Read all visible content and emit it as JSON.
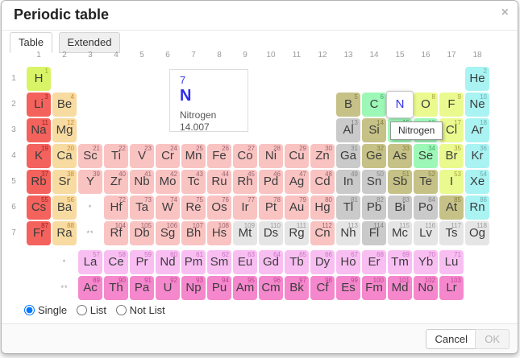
{
  "dialog": {
    "title": "Periodic table",
    "close_label": "×",
    "tabs": [
      {
        "label": "Table",
        "active": true
      },
      {
        "label": "Extended",
        "active": false
      }
    ],
    "footer": {
      "cancel_label": "Cancel",
      "ok_label": "OK",
      "ok_enabled": false
    }
  },
  "detail": {
    "number": "7",
    "symbol": "N",
    "name": "Nitrogen",
    "mass": "14.007"
  },
  "tooltip": {
    "text": "Nitrogen"
  },
  "modes": [
    {
      "label": "Single",
      "selected": true
    },
    {
      "label": "List",
      "selected": false
    },
    {
      "label": "Not List",
      "selected": false
    }
  ],
  "grid": {
    "col_headers": [
      "1",
      "2",
      "3",
      "4",
      "5",
      "6",
      "7",
      "8",
      "9",
      "10",
      "11",
      "12",
      "13",
      "14",
      "15",
      "16",
      "17",
      "18"
    ],
    "row_headers": [
      "1",
      "2",
      "3",
      "4",
      "5",
      "6",
      "7"
    ],
    "markers": [
      {
        "text": "*",
        "row": 6,
        "col": 3
      },
      {
        "text": "**",
        "row": 7,
        "col": 3
      },
      {
        "text": "*",
        "row": 8,
        "col": 2
      },
      {
        "text": "**",
        "row": 9,
        "col": 2
      }
    ],
    "colors": {
      "hyd": {
        "bg": "#d9f467",
        "num": "#8fae2f"
      },
      "alk": {
        "bg": "#f4625d",
        "num": "#9e2323"
      },
      "ae": {
        "bg": "#f8dba0",
        "num": "#c98a2e"
      },
      "tm": {
        "bg": "#f9c3c2",
        "num": "#9b6470"
      },
      "ptm": {
        "bg": "#cacaca",
        "num": "#868686"
      },
      "met": {
        "bg": "#c6c186",
        "num": "#858342"
      },
      "poly": {
        "bg": "#9df8b7",
        "num": "#47a96b"
      },
      "dia": {
        "bg": "#eafa8e",
        "num": "#a8a33f"
      },
      "nob": {
        "bg": "#a9f3f3",
        "num": "#6fadad"
      },
      "lan": {
        "bg": "#f8bef2",
        "num": "#c873c0"
      },
      "act": {
        "bg": "#f587cd",
        "num": "#bc4590"
      },
      "unk": {
        "bg": "#e5e5e5",
        "num": "#9d9d9d"
      }
    },
    "selected_symbol_color": "#3434eb",
    "elements": [
      {
        "n": 1,
        "s": "H",
        "r": 1,
        "c": 1,
        "k": "hyd"
      },
      {
        "n": 2,
        "s": "He",
        "r": 1,
        "c": 18,
        "k": "nob"
      },
      {
        "n": 3,
        "s": "Li",
        "r": 2,
        "c": 1,
        "k": "alk"
      },
      {
        "n": 4,
        "s": "Be",
        "r": 2,
        "c": 2,
        "k": "ae"
      },
      {
        "n": 5,
        "s": "B",
        "r": 2,
        "c": 13,
        "k": "met"
      },
      {
        "n": 6,
        "s": "C",
        "r": 2,
        "c": 14,
        "k": "poly"
      },
      {
        "n": 7,
        "s": "N",
        "r": 2,
        "c": 15,
        "k": "dia",
        "sel": true
      },
      {
        "n": 8,
        "s": "O",
        "r": 2,
        "c": 16,
        "k": "dia"
      },
      {
        "n": 9,
        "s": "F",
        "r": 2,
        "c": 17,
        "k": "dia"
      },
      {
        "n": 10,
        "s": "Ne",
        "r": 2,
        "c": 18,
        "k": "nob"
      },
      {
        "n": 11,
        "s": "Na",
        "r": 3,
        "c": 1,
        "k": "alk"
      },
      {
        "n": 12,
        "s": "Mg",
        "r": 3,
        "c": 2,
        "k": "ae"
      },
      {
        "n": 13,
        "s": "Al",
        "r": 3,
        "c": 13,
        "k": "ptm"
      },
      {
        "n": 14,
        "s": "Si",
        "r": 3,
        "c": 14,
        "k": "met"
      },
      {
        "n": 15,
        "s": "P",
        "r": 3,
        "c": 15,
        "k": "poly"
      },
      {
        "n": 16,
        "s": "S",
        "r": 3,
        "c": 16,
        "k": "poly"
      },
      {
        "n": 17,
        "s": "Cl",
        "r": 3,
        "c": 17,
        "k": "dia"
      },
      {
        "n": 18,
        "s": "Ar",
        "r": 3,
        "c": 18,
        "k": "nob"
      },
      {
        "n": 19,
        "s": "K",
        "r": 4,
        "c": 1,
        "k": "alk"
      },
      {
        "n": 20,
        "s": "Ca",
        "r": 4,
        "c": 2,
        "k": "ae"
      },
      {
        "n": 21,
        "s": "Sc",
        "r": 4,
        "c": 3,
        "k": "tm"
      },
      {
        "n": 22,
        "s": "Ti",
        "r": 4,
        "c": 4,
        "k": "tm"
      },
      {
        "n": 23,
        "s": "V",
        "r": 4,
        "c": 5,
        "k": "tm"
      },
      {
        "n": 24,
        "s": "Cr",
        "r": 4,
        "c": 6,
        "k": "tm"
      },
      {
        "n": 25,
        "s": "Mn",
        "r": 4,
        "c": 7,
        "k": "tm"
      },
      {
        "n": 26,
        "s": "Fe",
        "r": 4,
        "c": 8,
        "k": "tm"
      },
      {
        "n": 27,
        "s": "Co",
        "r": 4,
        "c": 9,
        "k": "tm"
      },
      {
        "n": 28,
        "s": "Ni",
        "r": 4,
        "c": 10,
        "k": "tm"
      },
      {
        "n": 29,
        "s": "Cu",
        "r": 4,
        "c": 11,
        "k": "tm"
      },
      {
        "n": 30,
        "s": "Zn",
        "r": 4,
        "c": 12,
        "k": "tm"
      },
      {
        "n": 31,
        "s": "Ga",
        "r": 4,
        "c": 13,
        "k": "ptm"
      },
      {
        "n": 32,
        "s": "Ge",
        "r": 4,
        "c": 14,
        "k": "met"
      },
      {
        "n": 33,
        "s": "As",
        "r": 4,
        "c": 15,
        "k": "met"
      },
      {
        "n": 34,
        "s": "Se",
        "r": 4,
        "c": 16,
        "k": "poly"
      },
      {
        "n": 35,
        "s": "Br",
        "r": 4,
        "c": 17,
        "k": "dia"
      },
      {
        "n": 36,
        "s": "Kr",
        "r": 4,
        "c": 18,
        "k": "nob"
      },
      {
        "n": 37,
        "s": "Rb",
        "r": 5,
        "c": 1,
        "k": "alk"
      },
      {
        "n": 38,
        "s": "Sr",
        "r": 5,
        "c": 2,
        "k": "ae"
      },
      {
        "n": 39,
        "s": "Y",
        "r": 5,
        "c": 3,
        "k": "tm"
      },
      {
        "n": 40,
        "s": "Zr",
        "r": 5,
        "c": 4,
        "k": "tm"
      },
      {
        "n": 41,
        "s": "Nb",
        "r": 5,
        "c": 5,
        "k": "tm"
      },
      {
        "n": 42,
        "s": "Mo",
        "r": 5,
        "c": 6,
        "k": "tm"
      },
      {
        "n": 43,
        "s": "Tc",
        "r": 5,
        "c": 7,
        "k": "tm"
      },
      {
        "n": 44,
        "s": "Ru",
        "r": 5,
        "c": 8,
        "k": "tm"
      },
      {
        "n": 45,
        "s": "Rh",
        "r": 5,
        "c": 9,
        "k": "tm"
      },
      {
        "n": 46,
        "s": "Pd",
        "r": 5,
        "c": 10,
        "k": "tm"
      },
      {
        "n": 47,
        "s": "Ag",
        "r": 5,
        "c": 11,
        "k": "tm"
      },
      {
        "n": 48,
        "s": "Cd",
        "r": 5,
        "c": 12,
        "k": "tm"
      },
      {
        "n": 49,
        "s": "In",
        "r": 5,
        "c": 13,
        "k": "ptm"
      },
      {
        "n": 50,
        "s": "Sn",
        "r": 5,
        "c": 14,
        "k": "ptm"
      },
      {
        "n": 51,
        "s": "Sb",
        "r": 5,
        "c": 15,
        "k": "met"
      },
      {
        "n": 52,
        "s": "Te",
        "r": 5,
        "c": 16,
        "k": "met"
      },
      {
        "n": 53,
        "s": "I",
        "r": 5,
        "c": 17,
        "k": "dia"
      },
      {
        "n": 54,
        "s": "Xe",
        "r": 5,
        "c": 18,
        "k": "nob"
      },
      {
        "n": 55,
        "s": "Cs",
        "r": 6,
        "c": 1,
        "k": "alk"
      },
      {
        "n": 56,
        "s": "Ba",
        "r": 6,
        "c": 2,
        "k": "ae"
      },
      {
        "n": 72,
        "s": "Hf",
        "r": 6,
        "c": 4,
        "k": "tm"
      },
      {
        "n": 73,
        "s": "Ta",
        "r": 6,
        "c": 5,
        "k": "tm"
      },
      {
        "n": 74,
        "s": "W",
        "r": 6,
        "c": 6,
        "k": "tm"
      },
      {
        "n": 75,
        "s": "Re",
        "r": 6,
        "c": 7,
        "k": "tm"
      },
      {
        "n": 76,
        "s": "Os",
        "r": 6,
        "c": 8,
        "k": "tm"
      },
      {
        "n": 77,
        "s": "Ir",
        "r": 6,
        "c": 9,
        "k": "tm"
      },
      {
        "n": 78,
        "s": "Pt",
        "r": 6,
        "c": 10,
        "k": "tm"
      },
      {
        "n": 79,
        "s": "Au",
        "r": 6,
        "c": 11,
        "k": "tm"
      },
      {
        "n": 80,
        "s": "Hg",
        "r": 6,
        "c": 12,
        "k": "tm"
      },
      {
        "n": 81,
        "s": "Tl",
        "r": 6,
        "c": 13,
        "k": "ptm"
      },
      {
        "n": 82,
        "s": "Pb",
        "r": 6,
        "c": 14,
        "k": "ptm"
      },
      {
        "n": 83,
        "s": "Bi",
        "r": 6,
        "c": 15,
        "k": "ptm"
      },
      {
        "n": 84,
        "s": "Po",
        "r": 6,
        "c": 16,
        "k": "ptm"
      },
      {
        "n": 85,
        "s": "At",
        "r": 6,
        "c": 17,
        "k": "met"
      },
      {
        "n": 86,
        "s": "Rn",
        "r": 6,
        "c": 18,
        "k": "nob"
      },
      {
        "n": 87,
        "s": "Fr",
        "r": 7,
        "c": 1,
        "k": "alk"
      },
      {
        "n": 88,
        "s": "Ra",
        "r": 7,
        "c": 2,
        "k": "ae"
      },
      {
        "n": 104,
        "s": "Rf",
        "r": 7,
        "c": 4,
        "k": "tm"
      },
      {
        "n": 105,
        "s": "Db",
        "r": 7,
        "c": 5,
        "k": "tm"
      },
      {
        "n": 106,
        "s": "Sg",
        "r": 7,
        "c": 6,
        "k": "tm"
      },
      {
        "n": 107,
        "s": "Bh",
        "r": 7,
        "c": 7,
        "k": "tm"
      },
      {
        "n": 108,
        "s": "Hs",
        "r": 7,
        "c": 8,
        "k": "tm"
      },
      {
        "n": 109,
        "s": "Mt",
        "r": 7,
        "c": 9,
        "k": "unk"
      },
      {
        "n": 110,
        "s": "Ds",
        "r": 7,
        "c": 10,
        "k": "unk"
      },
      {
        "n": 111,
        "s": "Rg",
        "r": 7,
        "c": 11,
        "k": "unk"
      },
      {
        "n": 112,
        "s": "Cn",
        "r": 7,
        "c": 12,
        "k": "tm"
      },
      {
        "n": 113,
        "s": "Nh",
        "r": 7,
        "c": 13,
        "k": "unk"
      },
      {
        "n": 114,
        "s": "Fl",
        "r": 7,
        "c": 14,
        "k": "ptm"
      },
      {
        "n": 115,
        "s": "Mc",
        "r": 7,
        "c": 15,
        "k": "unk"
      },
      {
        "n": 116,
        "s": "Lv",
        "r": 7,
        "c": 16,
        "k": "unk"
      },
      {
        "n": 117,
        "s": "Ts",
        "r": 7,
        "c": 17,
        "k": "unk"
      },
      {
        "n": 118,
        "s": "Og",
        "r": 7,
        "c": 18,
        "k": "unk"
      },
      {
        "n": 57,
        "s": "La",
        "r": 8,
        "c": 3,
        "k": "lan"
      },
      {
        "n": 58,
        "s": "Ce",
        "r": 8,
        "c": 4,
        "k": "lan"
      },
      {
        "n": 59,
        "s": "Pr",
        "r": 8,
        "c": 5,
        "k": "lan"
      },
      {
        "n": 60,
        "s": "Nd",
        "r": 8,
        "c": 6,
        "k": "lan"
      },
      {
        "n": 61,
        "s": "Pm",
        "r": 8,
        "c": 7,
        "k": "lan"
      },
      {
        "n": 62,
        "s": "Sm",
        "r": 8,
        "c": 8,
        "k": "lan"
      },
      {
        "n": 63,
        "s": "Eu",
        "r": 8,
        "c": 9,
        "k": "lan"
      },
      {
        "n": 64,
        "s": "Gd",
        "r": 8,
        "c": 10,
        "k": "lan"
      },
      {
        "n": 65,
        "s": "Tb",
        "r": 8,
        "c": 11,
        "k": "lan"
      },
      {
        "n": 66,
        "s": "Dy",
        "r": 8,
        "c": 12,
        "k": "lan"
      },
      {
        "n": 67,
        "s": "Ho",
        "r": 8,
        "c": 13,
        "k": "lan"
      },
      {
        "n": 68,
        "s": "Er",
        "r": 8,
        "c": 14,
        "k": "lan"
      },
      {
        "n": 69,
        "s": "Tm",
        "r": 8,
        "c": 15,
        "k": "lan"
      },
      {
        "n": 70,
        "s": "Yb",
        "r": 8,
        "c": 16,
        "k": "lan"
      },
      {
        "n": 71,
        "s": "Lu",
        "r": 8,
        "c": 17,
        "k": "lan"
      },
      {
        "n": 89,
        "s": "Ac",
        "r": 9,
        "c": 3,
        "k": "act"
      },
      {
        "n": 90,
        "s": "Th",
        "r": 9,
        "c": 4,
        "k": "act"
      },
      {
        "n": 91,
        "s": "Pa",
        "r": 9,
        "c": 5,
        "k": "act"
      },
      {
        "n": 92,
        "s": "U",
        "r": 9,
        "c": 6,
        "k": "act"
      },
      {
        "n": 93,
        "s": "Np",
        "r": 9,
        "c": 7,
        "k": "act"
      },
      {
        "n": 94,
        "s": "Pu",
        "r": 9,
        "c": 8,
        "k": "act"
      },
      {
        "n": 95,
        "s": "Am",
        "r": 9,
        "c": 9,
        "k": "act"
      },
      {
        "n": 96,
        "s": "Cm",
        "r": 9,
        "c": 10,
        "k": "act"
      },
      {
        "n": 97,
        "s": "Bk",
        "r": 9,
        "c": 11,
        "k": "act"
      },
      {
        "n": 98,
        "s": "Cf",
        "r": 9,
        "c": 12,
        "k": "act"
      },
      {
        "n": 99,
        "s": "Es",
        "r": 9,
        "c": 13,
        "k": "act"
      },
      {
        "n": 100,
        "s": "Fm",
        "r": 9,
        "c": 14,
        "k": "act"
      },
      {
        "n": 101,
        "s": "Md",
        "r": 9,
        "c": 15,
        "k": "act"
      },
      {
        "n": 102,
        "s": "No",
        "r": 9,
        "c": 16,
        "k": "act"
      },
      {
        "n": 103,
        "s": "Lr",
        "r": 9,
        "c": 17,
        "k": "act"
      }
    ]
  }
}
